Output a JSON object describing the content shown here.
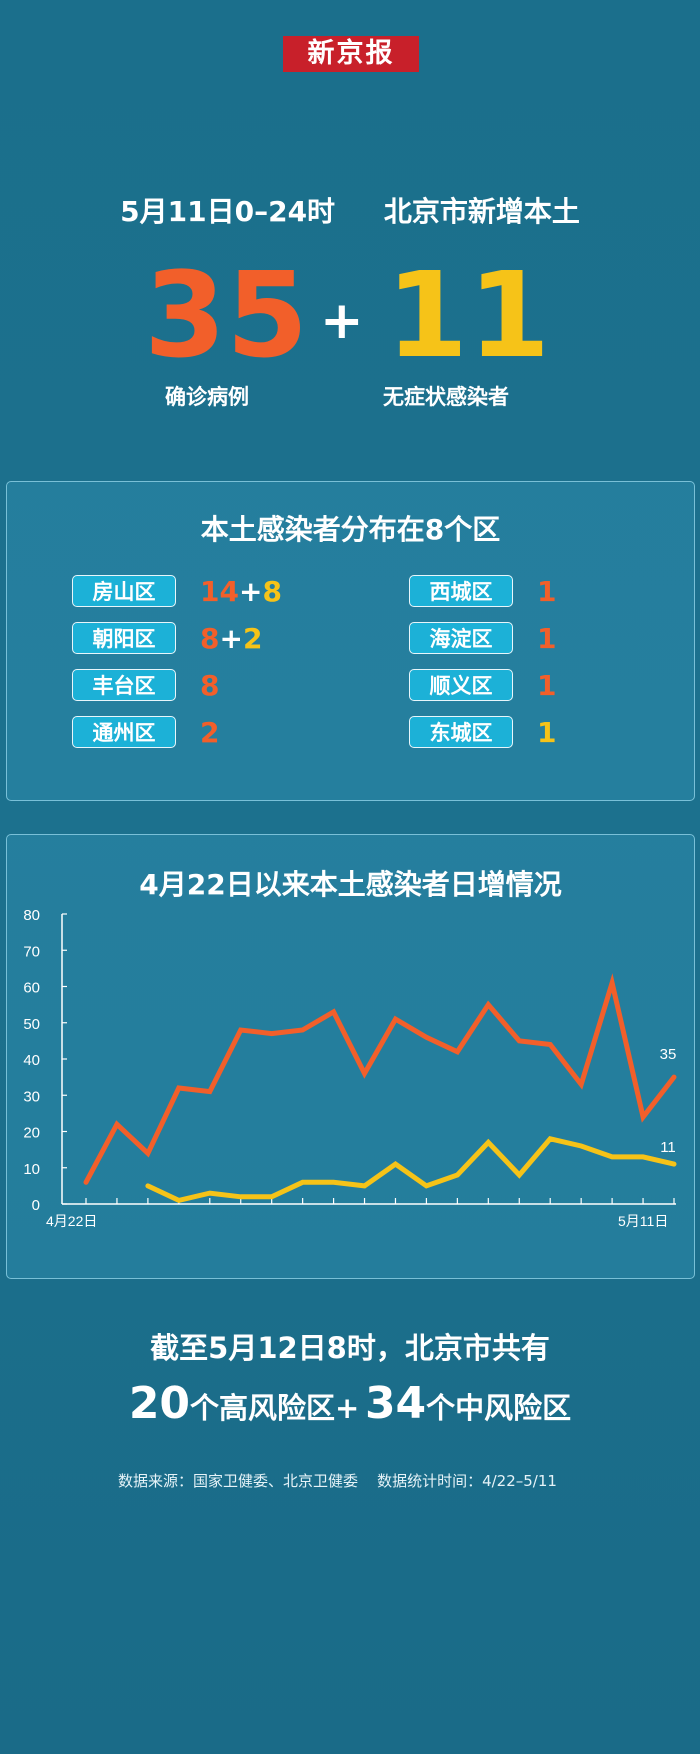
{
  "brand": "新京报",
  "headline": {
    "date": "5月11日0–24时",
    "subject": "北京市新增本土"
  },
  "totals": {
    "confirmed": "35",
    "confirmed_label": "确诊病例",
    "plus": "+",
    "asymptomatic": "11",
    "asymptomatic_label": "无症状感染者"
  },
  "districts_panel": {
    "title": "本土感染者分布在8个区",
    "left": [
      {
        "name": "房山区",
        "confirmed": "14",
        "plus": "+",
        "asymptomatic": "8"
      },
      {
        "name": "朝阳区",
        "confirmed": "8",
        "plus": "+",
        "asymptomatic": "2"
      },
      {
        "name": "丰台区",
        "confirmed": "8"
      },
      {
        "name": "通州区",
        "confirmed": "2"
      }
    ],
    "right": [
      {
        "name": "西城区",
        "confirmed": "1"
      },
      {
        "name": "海淀区",
        "confirmed": "1"
      },
      {
        "name": "顺义区",
        "confirmed": "1"
      },
      {
        "name": "东城区",
        "asymptomatic": "1"
      }
    ]
  },
  "chart_panel": {
    "title": "4月22日以来本土感染者日增情况"
  },
  "chart_data": {
    "type": "line",
    "x": [
      "4/22",
      "4/23",
      "4/24",
      "4/25",
      "4/26",
      "4/27",
      "4/28",
      "4/29",
      "4/30",
      "5/1",
      "5/2",
      "5/3",
      "5/4",
      "5/5",
      "5/6",
      "5/7",
      "5/8",
      "5/9",
      "5/10",
      "5/11"
    ],
    "x_tick_labels": {
      "first": "4月22日",
      "last": "5月11日"
    },
    "series": [
      {
        "key": "confirmed",
        "color": "#f25f2a",
        "values": [
          6,
          22,
          14,
          32,
          31,
          48,
          47,
          48,
          53,
          36,
          51,
          46,
          42,
          55,
          45,
          44,
          33,
          61,
          24,
          35
        ],
        "end_label": "35"
      },
      {
        "key": "asymptomatic",
        "color": "#f6c318",
        "values": [
          null,
          null,
          5,
          1,
          3,
          2,
          2,
          6,
          6,
          5,
          11,
          5,
          8,
          17,
          8,
          18,
          16,
          13,
          13,
          11
        ],
        "end_label": "11"
      }
    ],
    "ylim": [
      0,
      80
    ],
    "yticks": [
      0,
      10,
      20,
      30,
      40,
      50,
      60,
      70,
      80
    ],
    "grid": false
  },
  "summary": {
    "line1": "截至5月12日8时，北京市共有",
    "high_count": "20",
    "high_text": "个高风险区+",
    "mid_count": "34",
    "mid_text": "个中风险区"
  },
  "source": "数据来源：国家卫健委、北京卫健委    数据统计时间：4/22–5/11"
}
